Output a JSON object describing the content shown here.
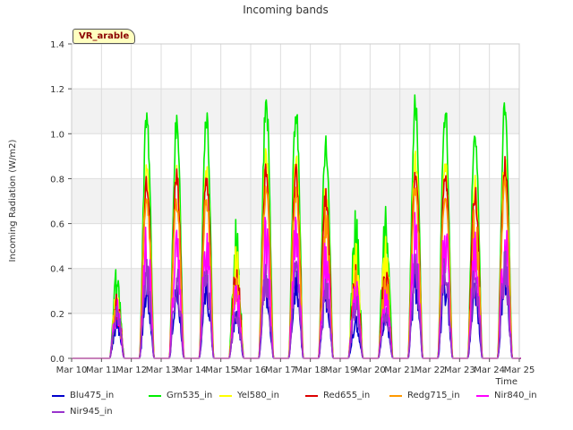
{
  "chart_data": {
    "type": "line",
    "title": "Incoming bands",
    "ylabel": "Incoming Radiation (W/m2)",
    "xlabel": "Time",
    "site_label": "VR_arable",
    "x_ticks": [
      "Mar 10",
      "Mar 11",
      "Mar 12",
      "Mar 13",
      "Mar 14",
      "Mar 15",
      "Mar 16",
      "Mar 17",
      "Mar 18",
      "Mar 19",
      "Mar 20",
      "Mar 21",
      "Mar 22",
      "Mar 23",
      "Mar 24",
      "Mar 25"
    ],
    "y_ticks": [
      "0.0",
      "0.2",
      "0.4",
      "0.6",
      "0.8",
      "1.0",
      "1.2",
      "1.4"
    ],
    "ylim": [
      0,
      1.4
    ],
    "grid": true,
    "legend_position": "bottom",
    "days": [
      "Mar 10",
      "Mar 11",
      "Mar 12",
      "Mar 13",
      "Mar 14",
      "Mar 15",
      "Mar 16",
      "Mar 17",
      "Mar 18",
      "Mar 19",
      "Mar 20",
      "Mar 21",
      "Mar 22",
      "Mar 23",
      "Mar 24"
    ],
    "series": [
      {
        "name": "Blu475_in",
        "color": "#0000cc",
        "values": [
          0,
          0.2,
          0.36,
          0.38,
          0.38,
          0.24,
          0.4,
          0.4,
          0.34,
          0.2,
          0.22,
          0.42,
          0.42,
          0.36,
          0.44
        ]
      },
      {
        "name": "Grn535_in",
        "color": "#00ee00",
        "values": [
          0,
          0.42,
          1.15,
          1.12,
          1.12,
          0.63,
          1.21,
          1.17,
          1.02,
          0.67,
          0.7,
          1.2,
          1.17,
          1.06,
          1.19
        ]
      },
      {
        "name": "Yel580_in",
        "color": "#ffff00",
        "values": [
          0,
          0.33,
          0.9,
          0.88,
          0.87,
          0.51,
          0.95,
          0.92,
          0.8,
          0.54,
          0.55,
          0.94,
          0.92,
          0.83,
          0.93
        ]
      },
      {
        "name": "Red655_in",
        "color": "#dd0000",
        "values": [
          0,
          0.29,
          0.84,
          0.86,
          0.85,
          0.45,
          0.88,
          0.87,
          0.76,
          0.45,
          0.46,
          0.9,
          0.88,
          0.78,
          0.9
        ]
      },
      {
        "name": "Redg715_in",
        "color": "#ff9900",
        "values": [
          0,
          0.27,
          0.76,
          0.75,
          0.75,
          0.41,
          0.8,
          0.78,
          0.68,
          0.41,
          0.42,
          0.8,
          0.79,
          0.7,
          0.81
        ]
      },
      {
        "name": "Nir840_in",
        "color": "#ff00ff",
        "values": [
          0,
          0.27,
          0.63,
          0.62,
          0.62,
          0.36,
          0.66,
          0.64,
          0.54,
          0.37,
          0.34,
          0.66,
          0.65,
          0.59,
          0.66
        ]
      },
      {
        "name": "Nir945_in",
        "color": "#9933cc",
        "values": [
          0,
          0.26,
          0.46,
          0.45,
          0.44,
          0.25,
          0.46,
          0.47,
          0.38,
          0.29,
          0.25,
          0.49,
          0.49,
          0.46,
          0.51
        ]
      }
    ]
  }
}
